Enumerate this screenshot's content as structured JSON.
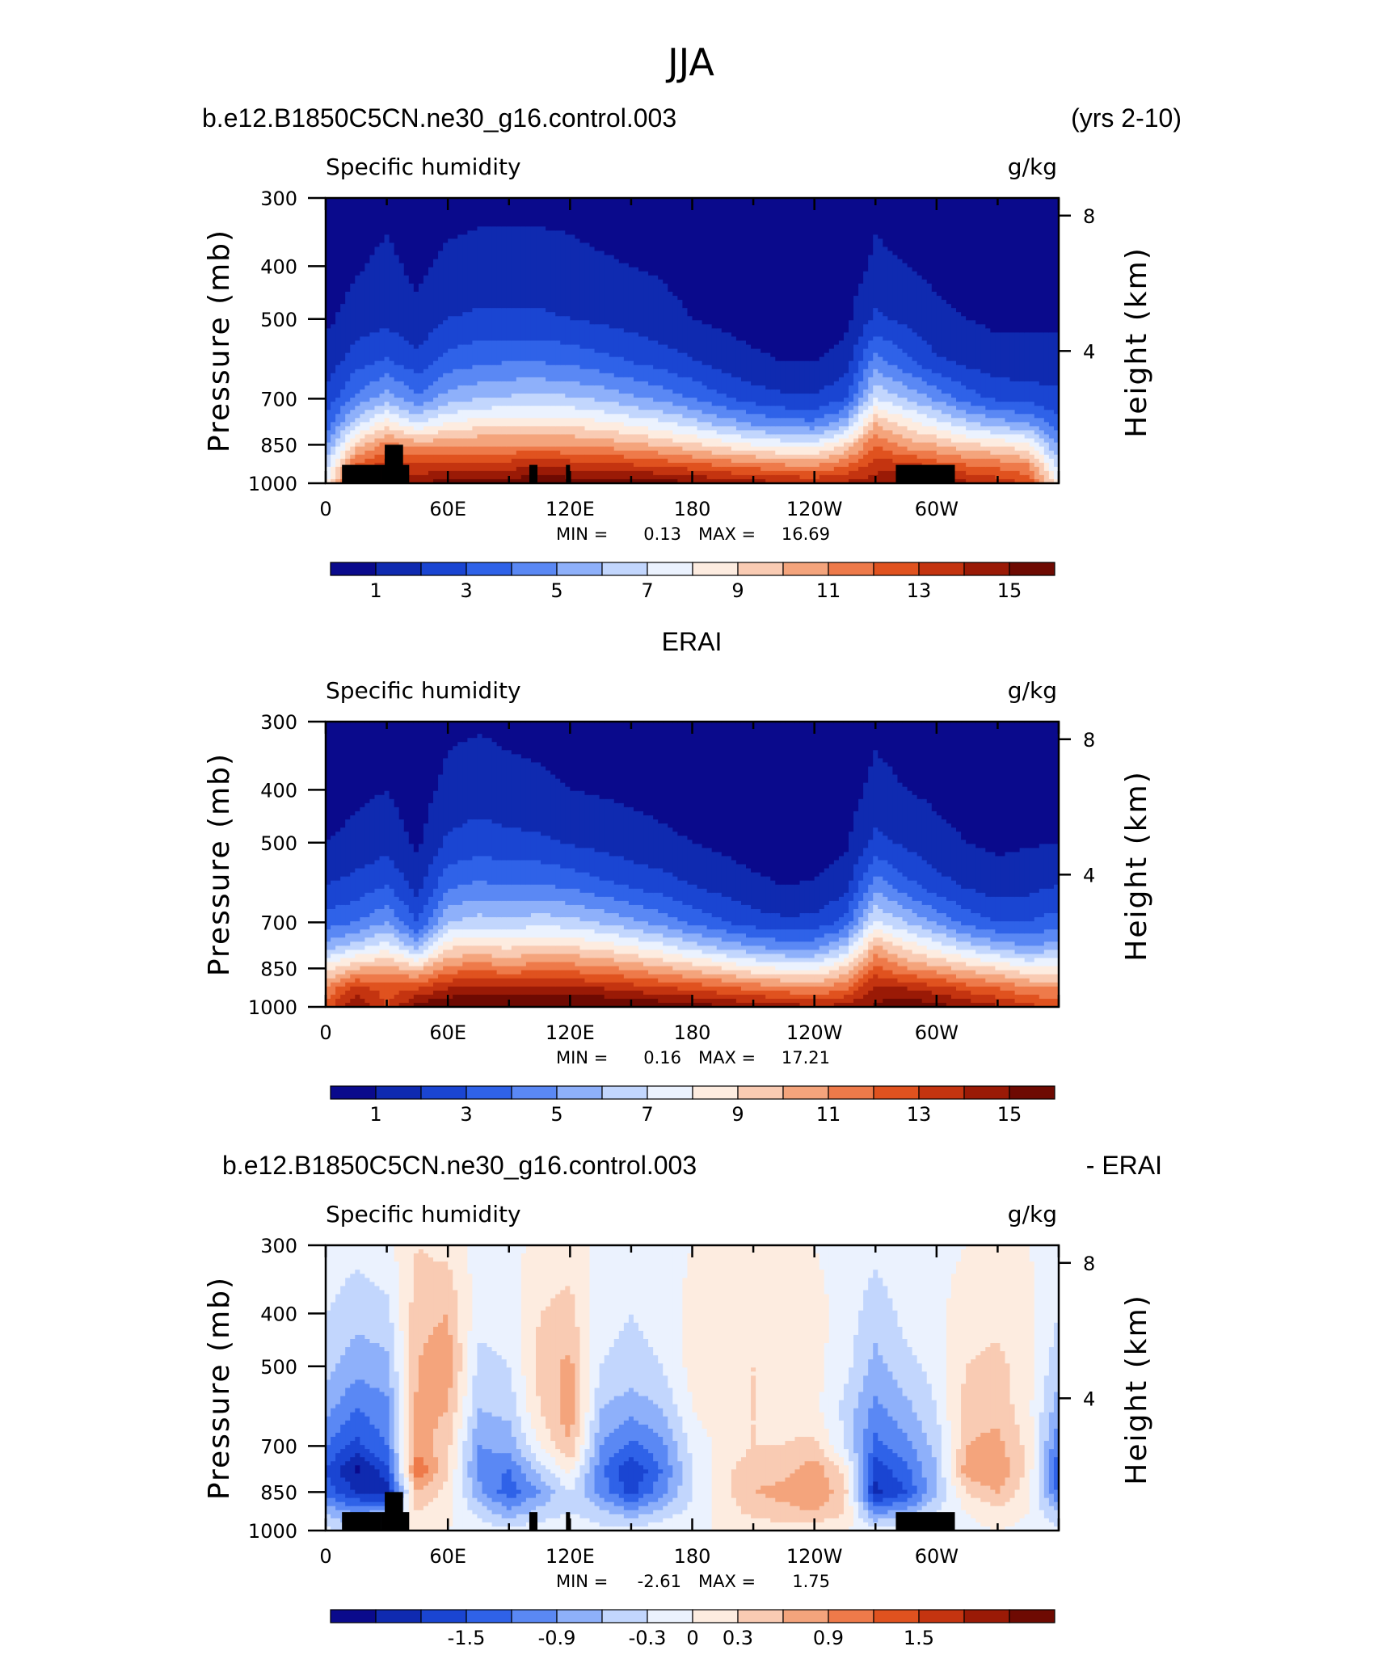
{
  "figure": {
    "title": "JJA"
  },
  "colors": {
    "absolute": [
      "#0a0a8c",
      "#0f2ab0",
      "#1a45d2",
      "#2f62e8",
      "#5a88f4",
      "#8eb0fa",
      "#c2d6fd",
      "#ebf2fe",
      "#fdece0",
      "#f9cbb3",
      "#f4a47c",
      "#ee7a4a",
      "#e0521f",
      "#c43410",
      "#9a1a06",
      "#6e0a02"
    ],
    "difference": [
      "#0a0a8c",
      "#0f2ab0",
      "#1a45d2",
      "#2f62e8",
      "#5a88f4",
      "#8eb0fa",
      "#c2d6fd",
      "#ebf2fe",
      "#fdece0",
      "#f9cbb3",
      "#f4a47c",
      "#ee7a4a",
      "#e0521f",
      "#c43410",
      "#9a1a06",
      "#6e0a02"
    ]
  },
  "panels": [
    {
      "left_title": "b.e12.B1850C5CN.ne30_g16.control.003",
      "right_title": "(yrs 2-10)",
      "center_title": "",
      "variable": "Specific humidity",
      "units": "g/kg",
      "left_axis_label": "Pressure (mb)",
      "right_axis_label": "Height (km)",
      "x_ticks": [
        "0",
        "60E",
        "120E",
        "180",
        "120W",
        "60W"
      ],
      "y_ticks": [
        "300",
        "400",
        "500",
        "700",
        "850",
        "1000"
      ],
      "height_ticks": [
        "8",
        "4"
      ],
      "stats": {
        "min_label": "MIN =",
        "min": "0.13",
        "max_label": "MAX =",
        "max": "16.69"
      },
      "colorbar_labels": [
        "1",
        "3",
        "5",
        "7",
        "9",
        "11",
        "13",
        "15"
      ]
    },
    {
      "left_title": "",
      "right_title": "",
      "center_title": "ERAI",
      "variable": "Specific humidity",
      "units": "g/kg",
      "left_axis_label": "Pressure (mb)",
      "right_axis_label": "Height (km)",
      "x_ticks": [
        "0",
        "60E",
        "120E",
        "180",
        "120W",
        "60W"
      ],
      "y_ticks": [
        "300",
        "400",
        "500",
        "700",
        "850",
        "1000"
      ],
      "height_ticks": [
        "8",
        "4"
      ],
      "stats": {
        "min_label": "MIN =",
        "min": "0.16",
        "max_label": "MAX =",
        "max": "17.21"
      },
      "colorbar_labels": [
        "1",
        "3",
        "5",
        "7",
        "9",
        "11",
        "13",
        "15"
      ]
    },
    {
      "left_title": "b.e12.B1850C5CN.ne30_g16.control.003",
      "right_title": "- ERAI",
      "center_title": "",
      "variable": "Specific humidity",
      "units": "g/kg",
      "left_axis_label": "Pressure (mb)",
      "right_axis_label": "Height (km)",
      "x_ticks": [
        "0",
        "60E",
        "120E",
        "180",
        "120W",
        "60W"
      ],
      "y_ticks": [
        "300",
        "400",
        "500",
        "700",
        "850",
        "1000"
      ],
      "height_ticks": [
        "8",
        "4"
      ],
      "stats": {
        "min_label": "MIN =",
        "min": "-2.61",
        "max_label": "MAX =",
        "max": "1.75"
      },
      "colorbar_labels": [
        "-1.5",
        "-0.9",
        "-0.3",
        "0",
        "0.3",
        "0.9",
        "1.5"
      ]
    }
  ],
  "chart_data": [
    {
      "type": "heatmap",
      "title": "b.e12.B1850C5CN.ne30_g16.control.003",
      "subtitle": "(yrs 2-10)",
      "variable": "Specific humidity",
      "units": "g/kg",
      "xlabel": "",
      "ylabel": "Pressure (mb)",
      "y2label": "Height (km)",
      "x_range": [
        0,
        360
      ],
      "y_range": [
        1000,
        300
      ],
      "y_scale": "log",
      "levels": [
        1,
        2,
        3,
        4,
        5,
        6,
        7,
        8,
        9,
        10,
        11,
        12,
        13,
        14,
        15
      ],
      "longitudes": [
        0,
        15,
        30,
        45,
        60,
        75,
        90,
        105,
        120,
        135,
        150,
        165,
        180,
        195,
        210,
        225,
        240,
        255,
        270,
        285,
        300,
        315,
        330,
        345,
        360
      ],
      "pressure_levels": [
        300,
        400,
        500,
        600,
        700,
        775,
        850,
        925,
        1000
      ],
      "values": [
        [
          0.3,
          0.5,
          0.8,
          1.4,
          2.3,
          3.3,
          4.8,
          6.5,
          8.0
        ],
        [
          0.6,
          0.9,
          1.4,
          2.6,
          4.3,
          6.5,
          9.4,
          12.3,
          14.2
        ],
        [
          0.8,
          1.2,
          1.7,
          3.2,
          5.6,
          8.5,
          11.5,
          13.5,
          14.8
        ],
        [
          0.5,
          0.8,
          1.2,
          2.4,
          4.2,
          7.0,
          10.5,
          13.0,
          15.0
        ],
        [
          0.7,
          1.2,
          2.0,
          3.5,
          5.5,
          8.0,
          10.8,
          13.2,
          15.5
        ],
        [
          0.8,
          1.3,
          2.2,
          3.8,
          6.0,
          8.5,
          11.0,
          13.5,
          15.6
        ],
        [
          0.8,
          1.3,
          2.2,
          4.0,
          6.2,
          8.6,
          11.0,
          13.5,
          15.5
        ],
        [
          0.8,
          1.3,
          2.2,
          4.0,
          6.3,
          8.7,
          11.0,
          13.8,
          16.0
        ],
        [
          0.8,
          1.2,
          2.0,
          3.8,
          6.2,
          8.6,
          11.0,
          13.5,
          15.7
        ],
        [
          0.7,
          1.1,
          1.8,
          3.4,
          5.8,
          8.2,
          10.7,
          13.3,
          15.7
        ],
        [
          0.6,
          1.0,
          1.6,
          3.0,
          5.3,
          7.7,
          10.3,
          13.0,
          15.6
        ],
        [
          0.5,
          0.9,
          1.3,
          2.6,
          4.7,
          7.2,
          9.8,
          12.7,
          15.5
        ],
        [
          0.4,
          0.7,
          1.0,
          2.1,
          4.0,
          6.4,
          9.2,
          12.3,
          15.2
        ],
        [
          0.3,
          0.5,
          0.8,
          1.6,
          3.2,
          5.6,
          8.6,
          11.8,
          14.8
        ],
        [
          0.3,
          0.4,
          0.6,
          1.2,
          2.6,
          4.8,
          8.0,
          11.4,
          14.5
        ],
        [
          0.2,
          0.3,
          0.5,
          1.0,
          2.2,
          4.4,
          7.6,
          11.0,
          14.2
        ],
        [
          0.2,
          0.3,
          0.5,
          1.0,
          2.1,
          4.2,
          7.5,
          10.8,
          14.0
        ],
        [
          0.3,
          0.4,
          0.7,
          1.4,
          2.9,
          5.5,
          9.0,
          11.8,
          14.2
        ],
        [
          0.8,
          1.2,
          2.2,
          4.5,
          7.0,
          10.0,
          12.0,
          13.5,
          14.5
        ],
        [
          0.6,
          1.0,
          1.8,
          3.3,
          6.0,
          8.5,
          10.5,
          13.5,
          15.5
        ],
        [
          0.5,
          0.8,
          1.2,
          2.2,
          4.8,
          7.4,
          10.0,
          12.5,
          14.8
        ],
        [
          0.4,
          0.6,
          1.0,
          1.8,
          3.5,
          6.2,
          9.2,
          12.0,
          14.2
        ],
        [
          0.3,
          0.5,
          0.8,
          1.4,
          2.8,
          5.4,
          8.8,
          11.6,
          13.6
        ],
        [
          0.3,
          0.5,
          0.8,
          1.4,
          2.6,
          5.0,
          8.2,
          11.0,
          13.0
        ],
        [
          0.3,
          0.5,
          0.8,
          1.4,
          2.3,
          3.3,
          4.8,
          6.5,
          8.0
        ]
      ],
      "min": 0.13,
      "max": 16.69
    },
    {
      "type": "heatmap",
      "title": "ERAI",
      "variable": "Specific humidity",
      "units": "g/kg",
      "xlabel": "",
      "ylabel": "Pressure (mb)",
      "y2label": "Height (km)",
      "x_range": [
        0,
        360
      ],
      "y_range": [
        1000,
        300
      ],
      "y_scale": "log",
      "levels": [
        1,
        2,
        3,
        4,
        5,
        6,
        7,
        8,
        9,
        10,
        11,
        12,
        13,
        14,
        15
      ],
      "longitudes": [
        0,
        15,
        30,
        45,
        60,
        75,
        90,
        105,
        120,
        135,
        150,
        165,
        180,
        195,
        210,
        225,
        240,
        255,
        270,
        285,
        300,
        315,
        330,
        345,
        360
      ],
      "pressure_levels": [
        300,
        400,
        500,
        600,
        700,
        775,
        850,
        925,
        1000
      ],
      "values": [
        [
          0.3,
          0.5,
          1.0,
          2.0,
          3.5,
          5.5,
          8.5,
          11.0,
          12.6
        ],
        [
          0.5,
          0.8,
          1.3,
          2.4,
          4.0,
          6.5,
          10.0,
          13.5,
          15.0
        ],
        [
          0.6,
          1.0,
          1.6,
          3.0,
          5.0,
          7.5,
          10.5,
          12.5,
          13.0
        ],
        [
          0.3,
          0.5,
          0.8,
          1.6,
          3.0,
          5.5,
          9.5,
          13.0,
          15.5
        ],
        [
          0.8,
          1.3,
          2.2,
          3.8,
          6.0,
          8.8,
          11.5,
          14.0,
          16.2
        ],
        [
          0.9,
          1.5,
          2.5,
          4.2,
          6.5,
          9.0,
          11.6,
          14.3,
          16.2
        ],
        [
          0.8,
          1.3,
          2.3,
          4.0,
          6.3,
          8.8,
          11.4,
          14.2,
          16.2
        ],
        [
          0.7,
          1.2,
          2.2,
          4.1,
          6.6,
          9.2,
          11.6,
          14.2,
          16.3
        ],
        [
          0.6,
          1.0,
          1.9,
          3.8,
          6.4,
          9.0,
          11.6,
          14.2,
          16.4
        ],
        [
          0.6,
          0.9,
          1.7,
          3.3,
          5.9,
          8.6,
          11.3,
          14.0,
          16.4
        ],
        [
          0.5,
          0.8,
          1.4,
          2.9,
          5.3,
          8.0,
          10.8,
          13.6,
          16.2
        ],
        [
          0.4,
          0.7,
          1.2,
          2.5,
          4.6,
          7.3,
          10.2,
          13.2,
          15.9
        ],
        [
          0.4,
          0.6,
          1.0,
          2.0,
          3.8,
          6.5,
          9.6,
          12.8,
          15.6
        ],
        [
          0.3,
          0.5,
          0.8,
          1.6,
          3.1,
          5.7,
          9.0,
          12.3,
          15.2
        ],
        [
          0.3,
          0.4,
          0.6,
          1.2,
          2.5,
          5.0,
          8.3,
          11.8,
          14.8
        ],
        [
          0.2,
          0.3,
          0.5,
          1.0,
          2.2,
          4.6,
          7.9,
          11.4,
          14.5
        ],
        [
          0.2,
          0.3,
          0.5,
          1.1,
          2.3,
          4.6,
          7.8,
          11.0,
          14.2
        ],
        [
          0.3,
          0.5,
          0.8,
          1.6,
          3.3,
          6.0,
          9.2,
          11.8,
          14.4
        ],
        [
          0.8,
          1.3,
          2.3,
          4.6,
          7.2,
          10.2,
          12.4,
          14.2,
          15.2
        ],
        [
          0.6,
          1.0,
          1.8,
          3.4,
          6.0,
          8.6,
          11.0,
          14.0,
          16.0
        ],
        [
          0.5,
          0.8,
          1.3,
          2.4,
          4.8,
          7.6,
          10.4,
          13.5,
          15.4
        ],
        [
          0.4,
          0.6,
          1.0,
          1.9,
          3.6,
          6.4,
          9.6,
          12.6,
          14.8
        ],
        [
          0.3,
          0.5,
          0.8,
          1.5,
          3.0,
          5.6,
          9.0,
          12.0,
          14.2
        ],
        [
          0.3,
          0.5,
          0.9,
          1.7,
          3.0,
          5.0,
          8.2,
          11.2,
          13.4
        ],
        [
          0.3,
          0.5,
          1.0,
          2.0,
          3.5,
          5.5,
          8.5,
          11.0,
          12.6
        ]
      ],
      "min": 0.16,
      "max": 17.21
    },
    {
      "type": "heatmap",
      "title": "b.e12.B1850C5CN.ne30_g16.control.003",
      "subtitle": "- ERAI",
      "variable": "Specific humidity",
      "units": "g/kg",
      "xlabel": "",
      "ylabel": "Pressure (mb)",
      "y2label": "Height (km)",
      "x_range": [
        0,
        360
      ],
      "y_range": [
        1000,
        300
      ],
      "y_scale": "log",
      "levels": [
        -2.1,
        -1.8,
        -1.5,
        -1.2,
        -0.9,
        -0.6,
        -0.3,
        0,
        0.3,
        0.6,
        0.9,
        1.2,
        1.5,
        1.8,
        2.1
      ],
      "longitudes": [
        0,
        15,
        30,
        45,
        60,
        75,
        90,
        105,
        120,
        135,
        150,
        165,
        180,
        195,
        210,
        225,
        240,
        255,
        270,
        285,
        300,
        315,
        330,
        345,
        360
      ],
      "pressure_levels": [
        300,
        400,
        500,
        600,
        700,
        775,
        850,
        925,
        1000
      ],
      "values": [
        [
          -0.1,
          -0.3,
          -0.5,
          -0.8,
          -1.2,
          -1.5,
          -1.3,
          -0.6,
          -0.2
        ],
        [
          -0.2,
          -0.5,
          -0.8,
          -1.2,
          -1.6,
          -2.2,
          -1.8,
          -1.0,
          -0.5
        ],
        [
          -0.1,
          -0.4,
          -0.7,
          -1.0,
          -1.2,
          -1.6,
          -2.0,
          -0.8,
          -0.3
        ],
        [
          0.3,
          0.5,
          0.6,
          0.7,
          0.8,
          1.2,
          0.6,
          0.3,
          0.1
        ],
        [
          0.2,
          0.6,
          0.8,
          0.6,
          0.4,
          0.3,
          0.2,
          0.1,
          0.0
        ],
        [
          -0.1,
          -0.2,
          -0.4,
          -0.6,
          -0.9,
          -1.0,
          -0.8,
          -0.4,
          -0.1
        ],
        [
          -0.1,
          -0.2,
          -0.3,
          -0.5,
          -0.8,
          -1.2,
          -1.4,
          -0.8,
          -0.2
        ],
        [
          0.1,
          0.3,
          0.4,
          0.3,
          0.0,
          -0.5,
          -0.9,
          -0.5,
          -0.1
        ],
        [
          0.2,
          0.4,
          0.7,
          0.8,
          0.6,
          0.1,
          -0.3,
          -0.3,
          -0.1
        ],
        [
          -0.1,
          -0.2,
          -0.3,
          -0.6,
          -0.9,
          -1.1,
          -1.0,
          -0.5,
          -0.2
        ],
        [
          -0.1,
          -0.3,
          -0.4,
          -0.8,
          -1.3,
          -1.8,
          -1.6,
          -0.8,
          -0.2
        ],
        [
          -0.1,
          -0.2,
          -0.3,
          -0.6,
          -1.0,
          -1.2,
          -1.0,
          -0.5,
          -0.1
        ],
        [
          0.0,
          0.1,
          0.1,
          0.0,
          -0.2,
          -0.3,
          -0.3,
          -0.2,
          0.0
        ],
        [
          0.0,
          0.1,
          0.3,
          0.2,
          0.1,
          0.2,
          0.2,
          0.1,
          0.0
        ],
        [
          0.0,
          0.2,
          0.3,
          0.3,
          0.3,
          0.5,
          0.6,
          0.4,
          0.1
        ],
        [
          0.0,
          0.1,
          0.2,
          0.2,
          0.3,
          0.5,
          0.7,
          0.5,
          0.1
        ],
        [
          0.0,
          0.1,
          0.1,
          0.1,
          0.4,
          0.8,
          0.9,
          0.6,
          0.1
        ],
        [
          -0.1,
          -0.1,
          -0.2,
          -0.4,
          -0.3,
          0.2,
          0.4,
          0.3,
          0.0
        ],
        [
          -0.2,
          -0.5,
          -0.7,
          -1.0,
          -1.3,
          -1.7,
          -1.9,
          -1.0,
          -0.1
        ],
        [
          -0.1,
          -0.2,
          -0.4,
          -0.7,
          -1.0,
          -1.3,
          -1.5,
          -0.8,
          -0.2
        ],
        [
          -0.1,
          -0.1,
          -0.2,
          -0.3,
          -0.5,
          -0.6,
          -0.6,
          -0.3,
          -0.1
        ],
        [
          0.0,
          0.2,
          0.3,
          0.5,
          0.6,
          0.8,
          0.3,
          0.0,
          -0.1
        ],
        [
          0.1,
          0.2,
          0.4,
          0.5,
          0.7,
          0.9,
          0.6,
          0.2,
          0.0
        ],
        [
          0.0,
          0.1,
          0.1,
          0.1,
          0.2,
          0.2,
          0.1,
          0.0,
          -0.1
        ],
        [
          -0.1,
          -0.3,
          -0.5,
          -0.8,
          -1.2,
          -1.5,
          -1.3,
          -0.6,
          -0.2
        ]
      ],
      "min": -2.61,
      "max": 1.75
    }
  ]
}
